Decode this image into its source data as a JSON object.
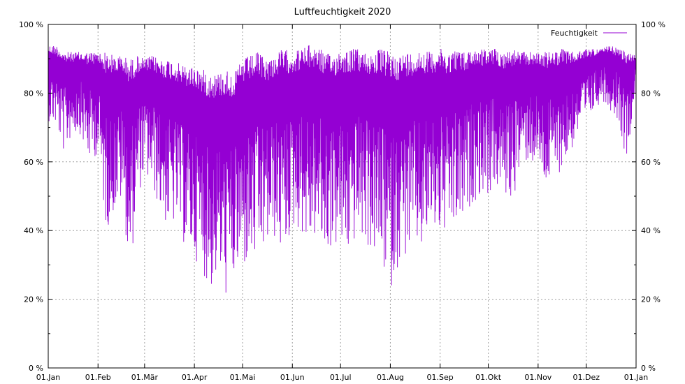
{
  "chart_data": {
    "type": "line",
    "title": "Luftfeuchtigkeit 2020",
    "xlabel": "",
    "ylabel": "",
    "ylim": [
      0,
      100
    ],
    "y_ticks": [
      "0 %",
      "20 %",
      "40 %",
      "60 %",
      "80 %",
      "100 %"
    ],
    "y_tick_values": [
      0,
      20,
      40,
      60,
      80,
      100
    ],
    "y2_ticks": [
      "0 %",
      "20 %",
      "40 %",
      "60 %",
      "80 %",
      "100 %"
    ],
    "x_ticks": [
      "01.Jan",
      "01.Feb",
      "01.Mär",
      "01.Apr",
      "01.Mai",
      "01.Jun",
      "01.Jul",
      "01.Aug",
      "01.Sep",
      "01.Okt",
      "01.Nov",
      "01.Dez",
      "01.Jan"
    ],
    "x_tick_days": [
      0,
      31,
      60,
      91,
      121,
      152,
      182,
      213,
      244,
      274,
      305,
      335,
      366
    ],
    "xlim_days": [
      0,
      366
    ],
    "grid": true,
    "legend_position": "top-right",
    "series": [
      {
        "name": "Feuchtigkeit",
        "color": "#9400d3",
        "x": [
          0,
          5,
          10,
          15,
          20,
          25,
          31,
          36,
          41,
          46,
          51,
          56,
          60,
          65,
          70,
          75,
          80,
          85,
          91,
          96,
          101,
          106,
          111,
          116,
          121,
          126,
          131,
          136,
          141,
          146,
          152,
          157,
          162,
          167,
          172,
          177,
          182,
          187,
          192,
          197,
          202,
          207,
          213,
          218,
          223,
          228,
          233,
          238,
          244,
          249,
          254,
          259,
          264,
          269,
          274,
          279,
          284,
          289,
          294,
          299,
          305,
          310,
          315,
          320,
          325,
          330,
          335,
          340,
          345,
          350,
          355,
          360,
          366
        ],
        "y_max": [
          94,
          94,
          92,
          92,
          92,
          92,
          92,
          92,
          91,
          91,
          90,
          91,
          90,
          91,
          90,
          90,
          89,
          88,
          88,
          87,
          86,
          86,
          87,
          86,
          90,
          91,
          92,
          90,
          91,
          93,
          92,
          93,
          94,
          94,
          92,
          91,
          93,
          93,
          93,
          92,
          92,
          93,
          92,
          91,
          92,
          92,
          93,
          92,
          93,
          92,
          93,
          92,
          93,
          93,
          93,
          93,
          92,
          93,
          92,
          92,
          92,
          92,
          92,
          93,
          92,
          92,
          93,
          93,
          93,
          94,
          93,
          92,
          91
        ],
        "y_min": [
          72,
          70,
          62,
          68,
          68,
          60,
          62,
          40,
          45,
          48,
          28,
          50,
          56,
          52,
          45,
          40,
          42,
          35,
          32,
          28,
          22,
          27,
          20,
          25,
          28,
          30,
          30,
          35,
          37,
          32,
          40,
          40,
          35,
          38,
          32,
          35,
          34,
          32,
          38,
          36,
          33,
          30,
          22,
          30,
          32,
          35,
          33,
          40,
          38,
          38,
          40,
          42,
          48,
          50,
          50,
          52,
          50,
          48,
          58,
          60,
          58,
          52,
          55,
          58,
          62,
          68,
          70,
          75,
          78,
          75,
          72,
          60,
          82
        ]
      }
    ]
  }
}
